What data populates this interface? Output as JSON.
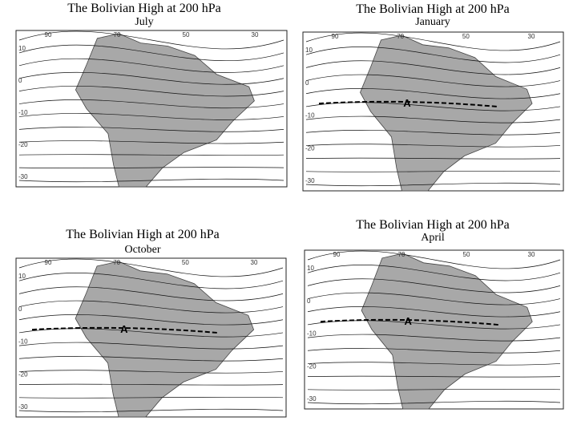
{
  "panels": [
    {
      "title": "The Bolivian High at 200 hPa",
      "month": "July",
      "lon_labels": [
        "90",
        "70",
        "50",
        "30"
      ],
      "lat_labels": [
        "10",
        "0",
        "-10",
        "-20",
        "-30"
      ]
    },
    {
      "title": "The Bolivian High at 200 hPa",
      "month": "January",
      "lon_labels": [
        "90",
        "70",
        "50",
        "30"
      ],
      "lat_labels": [
        "10",
        "0",
        "-10",
        "-20",
        "-30"
      ],
      "high_label": "A"
    },
    {
      "title": "The Bolivian High at 200 hPa",
      "month": "October",
      "lon_labels": [
        "90",
        "70",
        "50",
        "30"
      ],
      "lat_labels": [
        "10",
        "0",
        "-10",
        "-20",
        "-30"
      ],
      "high_label": "A"
    },
    {
      "title": "The Bolivian High at 200 hPa",
      "month": "April",
      "lon_labels": [
        "90",
        "70",
        "50",
        "30"
      ],
      "lat_labels": [
        "10",
        "0",
        "-10",
        "-20",
        "-30"
      ],
      "high_label": "A"
    }
  ]
}
